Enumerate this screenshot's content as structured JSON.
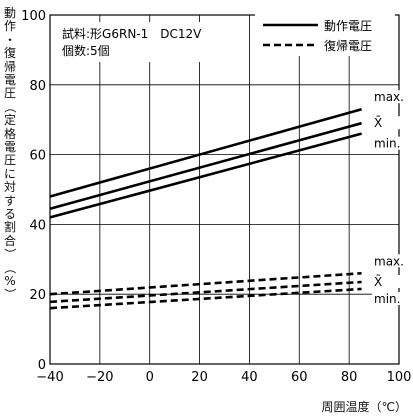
{
  "chart_data": {
    "type": "line",
    "annotation": {
      "line1": "試料:形G6RN-1　DC12V",
      "line2": "個数:5個"
    },
    "ylabel": "動作・復帰電圧（定格電圧に対する割合）（%）",
    "xlabel": "周囲温度（℃）",
    "xlim": [
      -40,
      100
    ],
    "ylim": [
      0,
      100
    ],
    "xticks": [
      "−40",
      "−20",
      "0",
      "20",
      "40",
      "60",
      "80",
      "100"
    ],
    "yticks": [
      "0",
      "20",
      "40",
      "60",
      "80",
      "100"
    ],
    "grid": true,
    "legend": {
      "placement": "top-right",
      "items": [
        {
          "label": "動作電圧",
          "style": "solid"
        },
        {
          "label": "復帰電圧",
          "style": "dashed"
        }
      ]
    },
    "x": [
      -40,
      85
    ],
    "series": [
      {
        "group": "動作電圧",
        "label": "max.",
        "style": "solid",
        "values": [
          48,
          73
        ]
      },
      {
        "group": "動作電圧",
        "label": "X̄",
        "style": "solid",
        "values": [
          44.5,
          69
        ]
      },
      {
        "group": "動作電圧",
        "label": "min.",
        "style": "solid",
        "values": [
          42,
          66
        ]
      },
      {
        "group": "復帰電圧",
        "label": "max.",
        "style": "dashed",
        "values": [
          20,
          26
        ]
      },
      {
        "group": "復帰電圧",
        "label": "X̄",
        "style": "dashed",
        "values": [
          17.8,
          23.5
        ]
      },
      {
        "group": "復帰電圧",
        "label": "min.",
        "style": "dashed",
        "values": [
          16,
          21.5
        ]
      }
    ]
  }
}
